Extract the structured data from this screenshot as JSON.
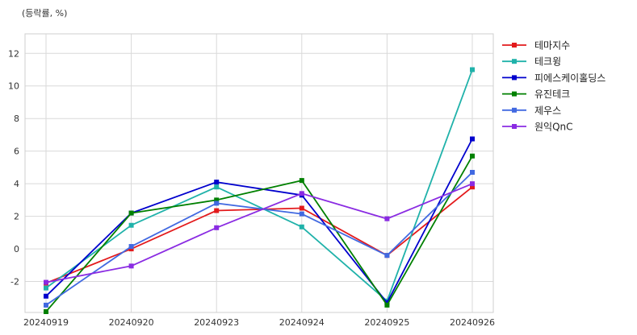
{
  "chart_data": {
    "type": "line",
    "unit_label": "(등락률, %)",
    "categories": [
      "20240919",
      "20240920",
      "20240923",
      "20240924",
      "20240925",
      "20240926"
    ],
    "ylim": [
      -3.9,
      13.2
    ],
    "yticks": [
      -2,
      0,
      2,
      4,
      6,
      8,
      10,
      12
    ],
    "grid": true,
    "legend_position": "right",
    "series": [
      {
        "name": "테마지수",
        "color": "#e31a1c",
        "values": [
          -2.1,
          0.0,
          2.35,
          2.5,
          -0.4,
          3.8
        ]
      },
      {
        "name": "테크윙",
        "color": "#20b2aa",
        "values": [
          -2.4,
          1.45,
          3.8,
          1.35,
          -3.2,
          11.0
        ]
      },
      {
        "name": "피에스케이홀딩스",
        "color": "#0000cd",
        "values": [
          -2.9,
          2.2,
          4.1,
          3.3,
          -3.3,
          6.75
        ]
      },
      {
        "name": "유진테크",
        "color": "#008000",
        "values": [
          -3.85,
          2.2,
          3.0,
          4.2,
          -3.45,
          5.7
        ]
      },
      {
        "name": "제우스",
        "color": "#4169e1",
        "values": [
          -3.45,
          0.15,
          2.8,
          2.15,
          -0.4,
          4.7
        ]
      },
      {
        "name": "원익QnC",
        "color": "#8a2be2",
        "values": [
          -2.05,
          -1.05,
          1.3,
          3.4,
          1.85,
          4.0
        ]
      }
    ]
  }
}
